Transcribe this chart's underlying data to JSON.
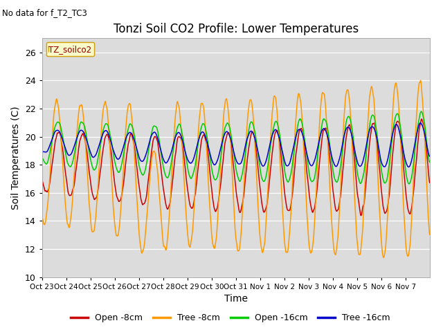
{
  "title": "Tonzi Soil CO2 Profile: Lower Temperatures",
  "suptitle": "No data for f_T2_TC3",
  "xlabel": "Time",
  "ylabel": "Soil Temperatures (C)",
  "ylim": [
    10,
    27
  ],
  "yticks": [
    10,
    12,
    14,
    16,
    18,
    20,
    22,
    24,
    26
  ],
  "legend_box_label": "TZ_soilco2",
  "legend_entries": [
    "Open -8cm",
    "Tree -8cm",
    "Open -16cm",
    "Tree -16cm"
  ],
  "legend_colors": [
    "#cc0000",
    "#ff9900",
    "#00cc00",
    "#0000cc"
  ],
  "bg_color": "#dcdcdc",
  "xtick_labels": [
    "Oct 23",
    "Oct 24",
    "Oct 25",
    "Oct 26",
    "Oct 27",
    "Oct 28",
    "Oct 29",
    "Oct 30",
    "Oct 31",
    "Nov 1",
    "Nov 2",
    "Nov 3",
    "Nov 4",
    "Nov 5",
    "Nov 6",
    "Nov 7"
  ],
  "n_days": 16
}
